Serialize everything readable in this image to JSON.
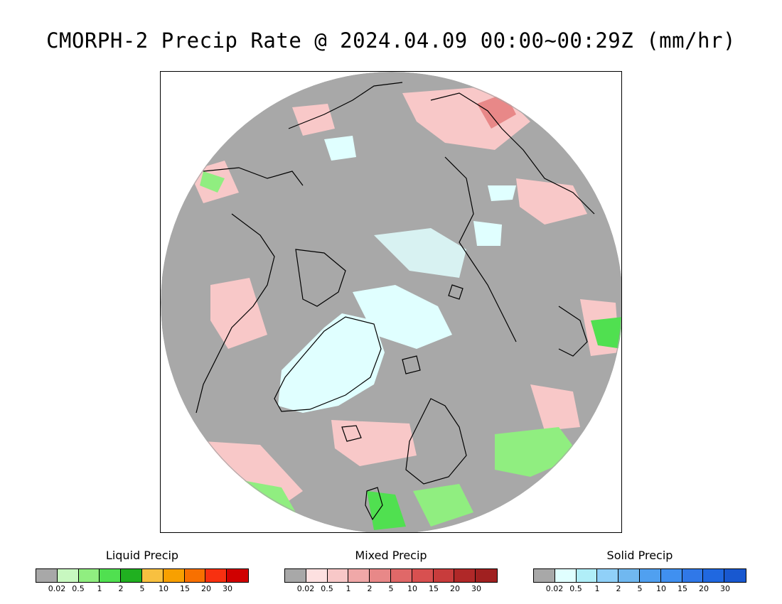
{
  "title": "CMORPH-2 Precip Rate @ 2024.04.09 00:00~00:29Z (mm/hr)",
  "map": {
    "projection": "polar-stereographic-north",
    "background_color": "#a8a8a8",
    "coastline_color": "#000000"
  },
  "legends": [
    {
      "title": "Liquid Precip",
      "colors": [
        "#a8a8a8",
        "#c8f8c0",
        "#90ee80",
        "#50e050",
        "#20b020",
        "#f8c040",
        "#f8a000",
        "#f87000",
        "#f83010",
        "#d00000"
      ],
      "ticks": [
        "0.02",
        "0.5",
        "1",
        "2",
        "5",
        "10",
        "15",
        "20",
        "30"
      ]
    },
    {
      "title": "Mixed Precip",
      "colors": [
        "#a8a8a8",
        "#fde0e0",
        "#f8c8c8",
        "#f0a8a8",
        "#e88888",
        "#e06868",
        "#d85050",
        "#c83c3c",
        "#b02828",
        "#a02020"
      ],
      "ticks": [
        "0.02",
        "0.5",
        "1",
        "2",
        "5",
        "10",
        "15",
        "20",
        "30"
      ]
    },
    {
      "title": "Solid Precip",
      "colors": [
        "#a8a8a8",
        "#e0ffff",
        "#b0eef8",
        "#90d0f8",
        "#70b8f0",
        "#50a0f0",
        "#4090f0",
        "#3078e8",
        "#2068e0",
        "#1858d0"
      ],
      "ticks": [
        "0.02",
        "0.5",
        "1",
        "2",
        "5",
        "10",
        "15",
        "20",
        "30"
      ]
    }
  ]
}
